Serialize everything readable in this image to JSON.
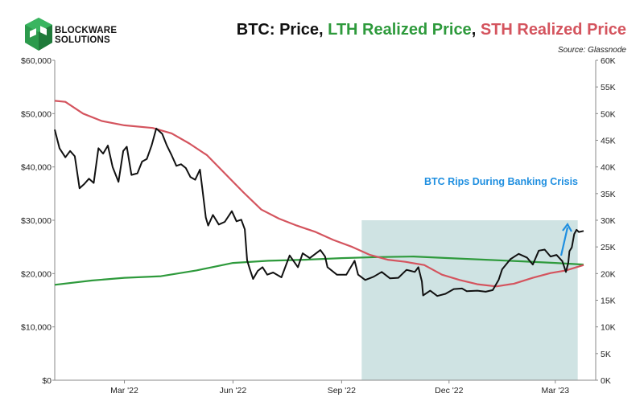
{
  "header": {
    "logo_line1": "BLOCKWARE",
    "logo_line2": "SOLUTIONS",
    "title_prefix": "BTC: Price, ",
    "title_lth": "LTH Realized Price",
    "title_sep": ", ",
    "title_sth": "STH Realized Price",
    "source": "Source: Glassnode"
  },
  "colors": {
    "price": "#111111",
    "lth": "#2e9a3c",
    "sth": "#d4545e",
    "shade": "#cfe3e3",
    "annotation": "#1f8fe0"
  },
  "chart_data": {
    "type": "line",
    "x_range": [
      "2022-01-01",
      "2023-03-25"
    ],
    "y_left": {
      "range": [
        0,
        60000
      ],
      "ticks": [
        "$0",
        "$10,000",
        "$20,000",
        "$30,000",
        "$40,000",
        "$50,000",
        "$60,000"
      ]
    },
    "y_right": {
      "range": [
        0,
        60000
      ],
      "ticks": [
        "0K",
        "5K",
        "10K",
        "15K",
        "20K",
        "25K",
        "30K",
        "35K",
        "40K",
        "45K",
        "50K",
        "55K",
        "60K"
      ]
    },
    "x_ticks": [
      {
        "label": "Mar '22",
        "date": "2022-03-01"
      },
      {
        "label": "Jun '22",
        "date": "2022-06-01"
      },
      {
        "label": "Sep '22",
        "date": "2022-09-01"
      },
      {
        "label": "Dec '22",
        "date": "2022-12-01"
      },
      {
        "label": "Mar '23",
        "date": "2023-03-01"
      }
    ],
    "shaded_region": {
      "x_start": "2022-09-18",
      "x_end": "2023-03-20"
    },
    "annotation": {
      "text": "BTC Rips During Banking Crisis"
    },
    "series": [
      {
        "name": "Price",
        "color": "#111111",
        "points": [
          [
            "2022-01-01",
            47000
          ],
          [
            "2022-01-05",
            43500
          ],
          [
            "2022-01-10",
            41800
          ],
          [
            "2022-01-14",
            43000
          ],
          [
            "2022-01-18",
            42000
          ],
          [
            "2022-01-22",
            36000
          ],
          [
            "2022-01-26",
            36800
          ],
          [
            "2022-01-30",
            37800
          ],
          [
            "2022-02-03",
            37000
          ],
          [
            "2022-02-07",
            43500
          ],
          [
            "2022-02-11",
            42500
          ],
          [
            "2022-02-15",
            44000
          ],
          [
            "2022-02-19",
            40000
          ],
          [
            "2022-02-24",
            37200
          ],
          [
            "2022-02-28",
            43000
          ],
          [
            "2022-03-03",
            43800
          ],
          [
            "2022-03-07",
            38500
          ],
          [
            "2022-03-12",
            38800
          ],
          [
            "2022-03-16",
            41000
          ],
          [
            "2022-03-20",
            41500
          ],
          [
            "2022-03-24",
            44000
          ],
          [
            "2022-03-28",
            47200
          ],
          [
            "2022-04-02",
            46200
          ],
          [
            "2022-04-06",
            44000
          ],
          [
            "2022-04-10",
            42200
          ],
          [
            "2022-04-14",
            40200
          ],
          [
            "2022-04-18",
            40500
          ],
          [
            "2022-04-22",
            39800
          ],
          [
            "2022-04-26",
            38100
          ],
          [
            "2022-04-30",
            37600
          ],
          [
            "2022-05-04",
            39500
          ],
          [
            "2022-05-06",
            36000
          ],
          [
            "2022-05-09",
            30500
          ],
          [
            "2022-05-11",
            29000
          ],
          [
            "2022-05-15",
            31000
          ],
          [
            "2022-05-20",
            29200
          ],
          [
            "2022-05-25",
            29700
          ],
          [
            "2022-05-31",
            31700
          ],
          [
            "2022-06-04",
            29800
          ],
          [
            "2022-06-08",
            30100
          ],
          [
            "2022-06-11",
            28300
          ],
          [
            "2022-06-13",
            22500
          ],
          [
            "2022-06-15",
            21000
          ],
          [
            "2022-06-18",
            19000
          ],
          [
            "2022-06-22",
            20500
          ],
          [
            "2022-06-26",
            21200
          ],
          [
            "2022-06-30",
            19800
          ],
          [
            "2022-07-05",
            20200
          ],
          [
            "2022-07-12",
            19300
          ],
          [
            "2022-07-19",
            23400
          ],
          [
            "2022-07-26",
            21200
          ],
          [
            "2022-07-30",
            23800
          ],
          [
            "2022-08-05",
            22900
          ],
          [
            "2022-08-14",
            24400
          ],
          [
            "2022-08-18",
            23200
          ],
          [
            "2022-08-20",
            21200
          ],
          [
            "2022-08-28",
            19800
          ],
          [
            "2022-09-05",
            19800
          ],
          [
            "2022-09-12",
            22400
          ],
          [
            "2022-09-15",
            19800
          ],
          [
            "2022-09-21",
            18800
          ],
          [
            "2022-09-28",
            19400
          ],
          [
            "2022-10-05",
            20300
          ],
          [
            "2022-10-12",
            19100
          ],
          [
            "2022-10-19",
            19200
          ],
          [
            "2022-10-26",
            20700
          ],
          [
            "2022-11-02",
            20300
          ],
          [
            "2022-11-05",
            21200
          ],
          [
            "2022-11-08",
            18500
          ],
          [
            "2022-11-09",
            15900
          ],
          [
            "2022-11-15",
            16800
          ],
          [
            "2022-11-21",
            15800
          ],
          [
            "2022-11-28",
            16200
          ],
          [
            "2022-12-05",
            17100
          ],
          [
            "2022-12-12",
            17200
          ],
          [
            "2022-12-16",
            16700
          ],
          [
            "2022-12-25",
            16800
          ],
          [
            "2023-01-01",
            16600
          ],
          [
            "2023-01-07",
            16900
          ],
          [
            "2023-01-12",
            18800
          ],
          [
            "2023-01-15",
            20800
          ],
          [
            "2023-01-22",
            22700
          ],
          [
            "2023-01-29",
            23700
          ],
          [
            "2023-02-05",
            23000
          ],
          [
            "2023-02-10",
            21700
          ],
          [
            "2023-02-15",
            24300
          ],
          [
            "2023-02-20",
            24500
          ],
          [
            "2023-02-25",
            23200
          ],
          [
            "2023-03-02",
            23500
          ],
          [
            "2023-03-07",
            22300
          ],
          [
            "2023-03-10",
            20300
          ],
          [
            "2023-03-12",
            22000
          ],
          [
            "2023-03-13",
            24200
          ],
          [
            "2023-03-15",
            24900
          ],
          [
            "2023-03-17",
            27400
          ],
          [
            "2023-03-19",
            28200
          ],
          [
            "2023-03-21",
            27800
          ],
          [
            "2023-03-25",
            28000
          ]
        ]
      },
      {
        "name": "LTH Realized Price",
        "color": "#2e9a3c",
        "points": [
          [
            "2022-01-01",
            17900
          ],
          [
            "2022-02-01",
            18700
          ],
          [
            "2022-03-01",
            19200
          ],
          [
            "2022-04-01",
            19500
          ],
          [
            "2022-05-01",
            20600
          ],
          [
            "2022-06-01",
            22000
          ],
          [
            "2022-07-01",
            22400
          ],
          [
            "2022-08-01",
            22600
          ],
          [
            "2022-09-01",
            22900
          ],
          [
            "2022-10-01",
            23100
          ],
          [
            "2022-11-01",
            23200
          ],
          [
            "2022-12-01",
            22900
          ],
          [
            "2023-01-01",
            22600
          ],
          [
            "2023-02-01",
            22300
          ],
          [
            "2023-03-01",
            22000
          ],
          [
            "2023-03-25",
            21700
          ]
        ]
      },
      {
        "name": "STH Realized Price",
        "color": "#d4545e",
        "points": [
          [
            "2022-01-01",
            52400
          ],
          [
            "2022-01-10",
            52200
          ],
          [
            "2022-01-25",
            50000
          ],
          [
            "2022-02-10",
            48600
          ],
          [
            "2022-03-01",
            47800
          ],
          [
            "2022-03-25",
            47300
          ],
          [
            "2022-04-10",
            46300
          ],
          [
            "2022-04-25",
            44400
          ],
          [
            "2022-05-10",
            42200
          ],
          [
            "2022-05-25",
            38800
          ],
          [
            "2022-06-10",
            35200
          ],
          [
            "2022-06-25",
            32000
          ],
          [
            "2022-07-10",
            30300
          ],
          [
            "2022-07-25",
            29000
          ],
          [
            "2022-08-10",
            27800
          ],
          [
            "2022-08-25",
            26300
          ],
          [
            "2022-09-10",
            25000
          ],
          [
            "2022-09-25",
            23500
          ],
          [
            "2022-10-10",
            22600
          ],
          [
            "2022-10-25",
            22200
          ],
          [
            "2022-11-10",
            21600
          ],
          [
            "2022-11-25",
            19800
          ],
          [
            "2022-12-10",
            18800
          ],
          [
            "2022-12-25",
            18000
          ],
          [
            "2023-01-10",
            17600
          ],
          [
            "2023-01-25",
            18100
          ],
          [
            "2023-02-10",
            19200
          ],
          [
            "2023-02-25",
            20100
          ],
          [
            "2023-03-10",
            20600
          ],
          [
            "2023-03-25",
            21600
          ]
        ]
      }
    ]
  }
}
